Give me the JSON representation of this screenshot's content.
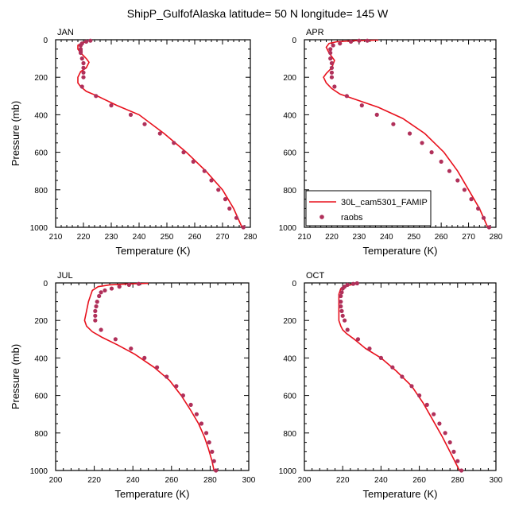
{
  "figure": {
    "title": "ShipP_GulfofAlaska  latitude= 50 N longitude= 145 W"
  },
  "colors": {
    "model": "#e8101c",
    "obs": "#b0305a"
  },
  "legend": {
    "model_label": "30L_cam5301_FAMIP",
    "obs_label": "raobs"
  },
  "chart_data": [
    {
      "type": "line",
      "panel_label": "JAN",
      "xlabel": "Temperature (K)",
      "ylabel": "Pressure (mb)",
      "xlim": [
        210,
        280
      ],
      "xticks": [
        210,
        220,
        230,
        240,
        250,
        260,
        270,
        280
      ],
      "ylim": [
        1000,
        0
      ],
      "yticks": [
        0,
        200,
        400,
        600,
        800,
        1000
      ],
      "grid": false,
      "series": [
        {
          "name": "30L_cam5301_FAMIP",
          "x": [
            221,
            219,
            218,
            218,
            219,
            220,
            221,
            222,
            221,
            219,
            218,
            218,
            219,
            221,
            225,
            232,
            240,
            249,
            257,
            264,
            270,
            274,
            277
          ],
          "y": [
            10,
            20,
            30,
            50,
            70,
            85,
            100,
            120,
            150,
            170,
            200,
            230,
            250,
            275,
            300,
            350,
            400,
            500,
            600,
            700,
            800,
            900,
            1000
          ]
        },
        {
          "name": "raobs",
          "x": [
            222.5,
            221,
            219.5,
            219,
            219,
            219,
            219,
            219.5,
            220,
            220,
            220,
            220,
            219.5,
            224.5,
            230,
            237,
            242,
            247.5,
            252.5,
            256,
            259.5,
            263.5,
            266,
            268.5,
            271,
            272.5,
            275,
            277.5
          ],
          "y": [
            5,
            10,
            20,
            30,
            50,
            60,
            70,
            100,
            125,
            150,
            175,
            200,
            250,
            300,
            350,
            400,
            450,
            500,
            550,
            600,
            650,
            700,
            750,
            800,
            850,
            900,
            950,
            1000
          ]
        }
      ]
    },
    {
      "type": "line",
      "panel_label": "APR",
      "xlabel": "Temperature (K)",
      "ylabel": "",
      "xlim": [
        210,
        280
      ],
      "xticks": [
        210,
        220,
        230,
        240,
        250,
        260,
        270,
        280
      ],
      "ylim": [
        1000,
        0
      ],
      "yticks": [
        0,
        200,
        400,
        600,
        800,
        1000
      ],
      "grid": false,
      "legend": "lower-left",
      "series": [
        {
          "name": "30L_cam5301_FAMIP",
          "x": [
            237,
            228,
            222,
            219,
            218,
            219,
            220,
            221,
            220,
            218,
            217,
            218,
            220,
            223,
            229,
            237,
            246,
            254,
            261,
            266,
            270,
            274,
            277
          ],
          "y": [
            2,
            5,
            10,
            20,
            40,
            70,
            90,
            110,
            150,
            180,
            200,
            230,
            260,
            290,
            320,
            360,
            420,
            500,
            600,
            700,
            800,
            900,
            1000
          ]
        },
        {
          "name": "raobs",
          "x": [
            233,
            230,
            227,
            223,
            220.5,
            219.5,
            219.5,
            219.5,
            220,
            220,
            220,
            220,
            221,
            225.5,
            231,
            236.5,
            242.5,
            248.5,
            253,
            256.5,
            260,
            263,
            266,
            268.5,
            271,
            273.5,
            275.5,
            277.5
          ],
          "y": [
            5,
            5,
            10,
            20,
            30,
            50,
            70,
            100,
            125,
            150,
            175,
            200,
            250,
            300,
            350,
            400,
            450,
            500,
            550,
            600,
            650,
            700,
            750,
            800,
            850,
            900,
            950,
            1000
          ]
        }
      ]
    },
    {
      "type": "line",
      "panel_label": "JUL",
      "xlabel": "Temperature (K)",
      "ylabel": "Pressure (mb)",
      "xlim": [
        200,
        300
      ],
      "xticks": [
        200,
        220,
        240,
        260,
        280,
        300
      ],
      "ylim": [
        1000,
        0
      ],
      "yticks": [
        0,
        200,
        400,
        600,
        800,
        1000
      ],
      "grid": false,
      "series": [
        {
          "name": "30L_cam5301_FAMIP",
          "x": [
            248,
            238,
            228,
            222,
            219,
            218,
            217,
            216,
            215,
            216,
            219,
            224,
            232,
            241,
            251,
            259,
            265,
            270,
            274,
            277,
            279,
            281,
            282
          ],
          "y": [
            2,
            5,
            10,
            20,
            40,
            70,
            100,
            150,
            200,
            230,
            260,
            290,
            330,
            380,
            450,
            520,
            600,
            680,
            750,
            820,
            880,
            950,
            1000
          ]
        },
        {
          "name": "raobs",
          "x": [
            243,
            238,
            233,
            229,
            225.5,
            223.5,
            222.5,
            221.5,
            221,
            220.5,
            220.5,
            220.5,
            223.5,
            231,
            239,
            246,
            252.5,
            257.5,
            262.5,
            266,
            270,
            273,
            275.5,
            278,
            279.5,
            281,
            282,
            283
          ],
          "y": [
            5,
            10,
            20,
            30,
            40,
            50,
            70,
            100,
            125,
            150,
            175,
            200,
            250,
            300,
            350,
            400,
            450,
            500,
            550,
            600,
            650,
            700,
            750,
            800,
            850,
            900,
            950,
            1000
          ]
        }
      ]
    },
    {
      "type": "line",
      "panel_label": "OCT",
      "xlabel": "Temperature (K)",
      "ylabel": "",
      "xlim": [
        200,
        300
      ],
      "xticks": [
        200,
        220,
        240,
        260,
        280,
        300
      ],
      "ylim": [
        1000,
        0
      ],
      "yticks": [
        0,
        200,
        400,
        600,
        800,
        1000
      ],
      "grid": false,
      "series": [
        {
          "name": "30L_cam5301_FAMIP",
          "x": [
            227,
            222,
            219,
            218,
            218,
            218,
            218,
            219,
            220,
            222,
            226,
            232,
            240,
            248,
            256,
            262,
            267,
            272,
            276,
            279,
            281
          ],
          "y": [
            5,
            15,
            30,
            60,
            100,
            150,
            200,
            230,
            250,
            270,
            300,
            350,
            400,
            470,
            550,
            640,
            730,
            820,
            900,
            960,
            1000
          ]
        },
        {
          "name": "raobs",
          "x": [
            227.5,
            225.5,
            222.5,
            221,
            220,
            219.5,
            219,
            219,
            219,
            219.5,
            220,
            221,
            222.5,
            228,
            234,
            240,
            246,
            251,
            256,
            260,
            264,
            267.5,
            270.5,
            273.5,
            276,
            278,
            280,
            282
          ],
          "y": [
            2,
            5,
            10,
            20,
            30,
            50,
            70,
            100,
            125,
            150,
            175,
            200,
            250,
            300,
            350,
            400,
            450,
            500,
            550,
            600,
            650,
            700,
            750,
            800,
            850,
            900,
            950,
            1000
          ]
        }
      ]
    }
  ]
}
